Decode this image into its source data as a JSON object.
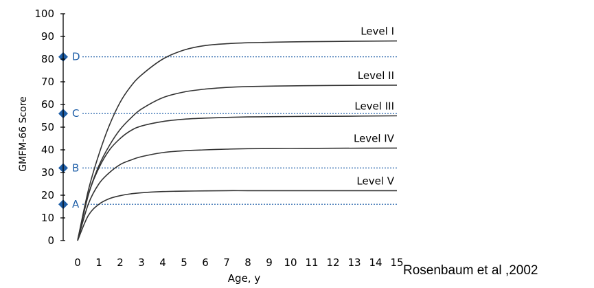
{
  "chart_data": {
    "type": "line",
    "title": "",
    "xlabel": "Age, y",
    "ylabel": "GMFM-66 Score",
    "xlim": [
      0,
      15
    ],
    "ylim": [
      0,
      100
    ],
    "x_ticks": [
      0,
      1,
      2,
      3,
      4,
      5,
      6,
      7,
      8,
      9,
      10,
      11,
      12,
      13,
      14,
      15
    ],
    "y_ticks": [
      0,
      10,
      20,
      30,
      40,
      50,
      60,
      70,
      80,
      90,
      100
    ],
    "grid": false,
    "x": [
      0,
      0.5,
      1,
      1.5,
      2,
      2.5,
      3,
      4,
      5,
      6,
      7,
      8,
      10,
      12,
      15
    ],
    "series": [
      {
        "name": "Level I",
        "values": [
          0,
          22,
          38,
          51,
          61,
          68,
          73,
          80,
          84,
          86,
          86.8,
          87.2,
          87.6,
          87.8,
          88
        ],
        "color": "#333333"
      },
      {
        "name": "Level II",
        "values": [
          0,
          20,
          33,
          42,
          49,
          54,
          58,
          63,
          65.5,
          66.8,
          67.5,
          67.9,
          68.2,
          68.4,
          68.5
        ],
        "color": "#333333"
      },
      {
        "name": "Level III",
        "values": [
          0,
          20,
          32,
          40,
          45,
          48.5,
          50.5,
          52.5,
          53.5,
          54,
          54.3,
          54.5,
          54.7,
          54.8,
          55
        ],
        "color": "#333333"
      },
      {
        "name": "Level IV",
        "values": [
          0,
          16,
          25,
          30,
          33.5,
          35.5,
          37,
          38.8,
          39.6,
          40,
          40.3,
          40.5,
          40.6,
          40.7,
          40.8
        ],
        "color": "#333333"
      },
      {
        "name": "Level V",
        "values": [
          0,
          11,
          16,
          18.5,
          19.8,
          20.6,
          21.1,
          21.6,
          21.8,
          21.9,
          22,
          22,
          22,
          22,
          22
        ],
        "color": "#333333"
      }
    ],
    "reference_lines": [
      {
        "label": "A",
        "y": 16
      },
      {
        "label": "B",
        "y": 32
      },
      {
        "label": "C",
        "y": 56
      },
      {
        "label": "D",
        "y": 81
      }
    ],
    "reference_color": "#1f5fa8",
    "source_text": "Rosenbaum et al ,2002"
  }
}
